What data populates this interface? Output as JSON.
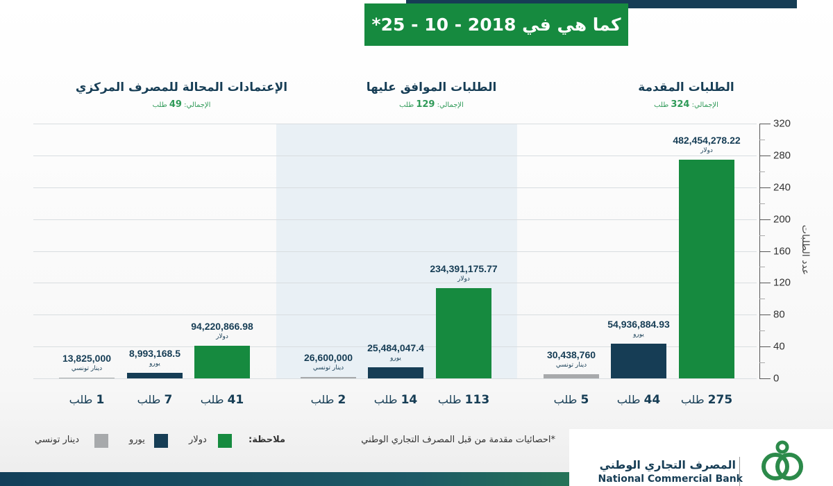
{
  "header": {
    "date_title": "كما هي في 2018 - 10 - 25*"
  },
  "chart_data": {
    "type": "bar",
    "ylabel": "عدد الطلبات",
    "ylim": [
      0,
      320
    ],
    "yticks": [
      0,
      40,
      80,
      120,
      160,
      200,
      240,
      280,
      320
    ],
    "grid": true,
    "legend_placement": "bottom",
    "colors": {
      "dollar": "#168a3f",
      "euro": "#163d55",
      "dinar": "#a7a9ab"
    },
    "panels": [
      {
        "title": "الطلبات المقدمة",
        "total_label": "الإجمالي:",
        "total": "324",
        "total_unit": "طلب",
        "bars": [
          {
            "series": "dinar",
            "count": 5,
            "count_label": "5",
            "amount": "30,438,760",
            "currency": "دينار تونسي"
          },
          {
            "series": "euro",
            "count": 44,
            "count_label": "44",
            "amount": "54,936,884.93",
            "currency": "يورو"
          },
          {
            "series": "dollar",
            "count": 275,
            "count_label": "275",
            "amount": "482,454,278.22",
            "currency": "دولار"
          }
        ]
      },
      {
        "title": "الطلبات الموافق عليها",
        "total_label": "الإجمالي:",
        "total": "129",
        "total_unit": "طلب",
        "bars": [
          {
            "series": "dinar",
            "count": 2,
            "count_label": "2",
            "amount": "26,600,000",
            "currency": "دينار تونسي"
          },
          {
            "series": "euro",
            "count": 14,
            "count_label": "14",
            "amount": "25,484,047.4",
            "currency": "يورو"
          },
          {
            "series": "dollar",
            "count": 113,
            "count_label": "113",
            "amount": "234,391,175.77",
            "currency": "دولار"
          }
        ]
      },
      {
        "title": "الإعتمادات المحالة للمصرف المركزي",
        "total_label": "الإجمالي:",
        "total": "49",
        "total_unit": "طلب",
        "bars": [
          {
            "series": "dinar",
            "count": 1,
            "count_label": "1",
            "amount": "13,825,000",
            "currency": "دينار تونسي"
          },
          {
            "series": "euro",
            "count": 7,
            "count_label": "7",
            "amount": "8,993,168.5",
            "currency": "يورو"
          },
          {
            "series": "dollar",
            "count": 41,
            "count_label": "41",
            "amount": "94,220,866.98",
            "currency": "دولار"
          }
        ]
      }
    ],
    "count_unit": "طلب"
  },
  "footer": {
    "source_note": "*احصائيات مقدمة من قبل المصرف التجاري الوطني",
    "legend_title": "ملاحظة:",
    "legend": [
      {
        "key": "dollar",
        "label": "دولار"
      },
      {
        "key": "euro",
        "label": "يورو"
      },
      {
        "key": "dinar",
        "label": "دينار تونسي"
      }
    ],
    "logo_ar": "المصرف التجاري الوطني",
    "logo_en": "National Commercial Bank"
  }
}
